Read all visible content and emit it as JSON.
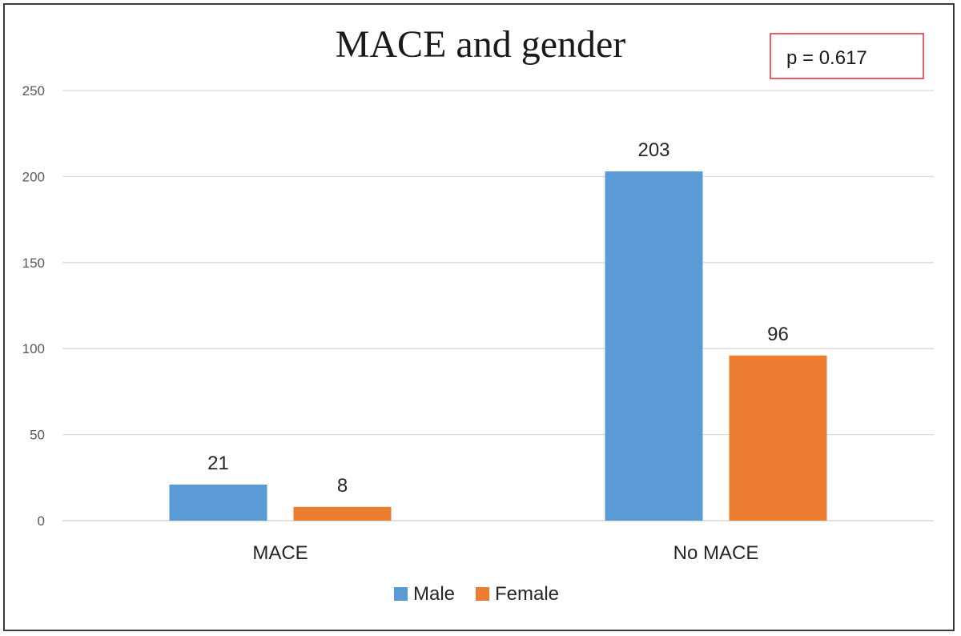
{
  "chart_data": {
    "type": "bar",
    "title": "MACE and gender",
    "annotation": "p = 0.617",
    "categories": [
      "MACE",
      "No MACE"
    ],
    "series": [
      {
        "name": "Male",
        "values": [
          21,
          203
        ],
        "color": "#5b9bd5"
      },
      {
        "name": "Female",
        "values": [
          8,
          96
        ],
        "color": "#ed7d31"
      }
    ],
    "ylim": [
      0,
      250
    ],
    "yticks": [
      "0",
      "50",
      "100",
      "150",
      "200",
      "250"
    ],
    "grid": true,
    "legend": "bottom",
    "xlabel": "",
    "ylabel": ""
  },
  "colors": {
    "grid": "#d9d9d9",
    "annotation_border": "#e0282e"
  }
}
